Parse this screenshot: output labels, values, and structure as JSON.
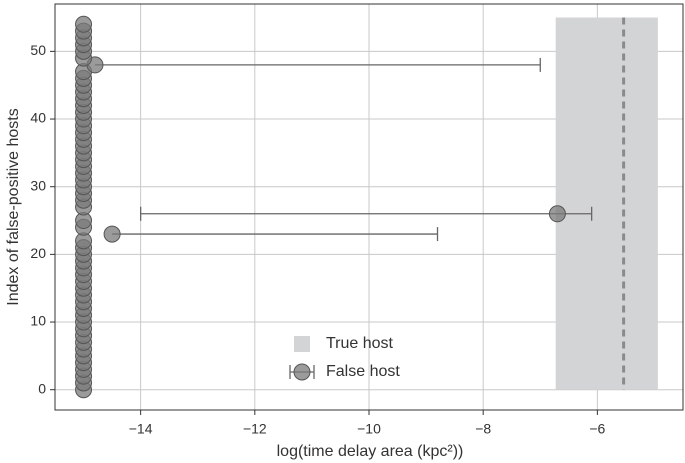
{
  "chart_data": {
    "type": "scatter",
    "x_label": "log(time delay area (kpc²))",
    "y_label": "Index of false-positive hosts",
    "xlim": [
      -15.5,
      -4.5
    ],
    "ylim": [
      -3,
      57
    ],
    "xticks": [
      {
        "value": -14,
        "label": "−14"
      },
      {
        "value": -12,
        "label": "−12"
      },
      {
        "value": -10,
        "label": "−10"
      },
      {
        "value": -8,
        "label": "−8"
      },
      {
        "value": -6,
        "label": "−6"
      }
    ],
    "yticks": [
      0,
      10,
      20,
      30,
      40,
      50
    ],
    "grid": true,
    "legend": "lower center",
    "true_host": {
      "name": "True host",
      "color": "#d3d4d6",
      "x_low": -6.73,
      "x_high": -4.94,
      "x": -5.54,
      "line_color": "#8a8a8a",
      "y_range": [
        0,
        55
      ]
    },
    "series": [
      {
        "name": "False host",
        "color": "#7a7a7a",
        "x": [
          -15,
          -15,
          -15,
          -15,
          -15,
          -15,
          -15,
          -15,
          -15,
          -15,
          -15,
          -15,
          -15,
          -15,
          -15,
          -15,
          -15,
          -15,
          -15,
          -15,
          -15,
          -15,
          -15,
          -14.5,
          -15,
          -15,
          -6.7,
          -15,
          -15,
          -15,
          -15,
          -15,
          -15,
          -15,
          -15,
          -15,
          -15,
          -15,
          -15,
          -15,
          -15,
          -15,
          -15,
          -15,
          -15,
          -15,
          -15,
          -15,
          -14.8,
          -15,
          -15,
          -15,
          -15,
          -15,
          -15
        ],
        "y": [
          0,
          1,
          2,
          3,
          4,
          5,
          6,
          7,
          8,
          9,
          10,
          11,
          12,
          13,
          14,
          15,
          16,
          17,
          18,
          19,
          20,
          21,
          22,
          23,
          24,
          25,
          26,
          27,
          28,
          29,
          30,
          31,
          32,
          33,
          34,
          35,
          36,
          37,
          38,
          39,
          40,
          41,
          42,
          43,
          44,
          45,
          46,
          47,
          48,
          49,
          50,
          51,
          52,
          53,
          54
        ],
        "xerr_minus": [
          null,
          null,
          null,
          null,
          null,
          null,
          null,
          null,
          null,
          null,
          null,
          null,
          null,
          null,
          null,
          null,
          null,
          null,
          null,
          null,
          null,
          null,
          null,
          null,
          null,
          null,
          7.3,
          null,
          null,
          null,
          null,
          null,
          null,
          null,
          null,
          null,
          null,
          null,
          null,
          null,
          null,
          null,
          null,
          null,
          null,
          null,
          null,
          null,
          null,
          null,
          null,
          null,
          null,
          null,
          null
        ],
        "xerr_plus": [
          null,
          null,
          null,
          null,
          null,
          null,
          null,
          null,
          null,
          null,
          null,
          null,
          null,
          null,
          null,
          null,
          null,
          null,
          null,
          null,
          null,
          null,
          null,
          5.7,
          null,
          null,
          0.6,
          null,
          null,
          null,
          null,
          null,
          null,
          null,
          null,
          null,
          null,
          null,
          null,
          null,
          null,
          null,
          null,
          null,
          null,
          null,
          null,
          null,
          7.8,
          null,
          null,
          null,
          null,
          null,
          null
        ]
      }
    ]
  }
}
